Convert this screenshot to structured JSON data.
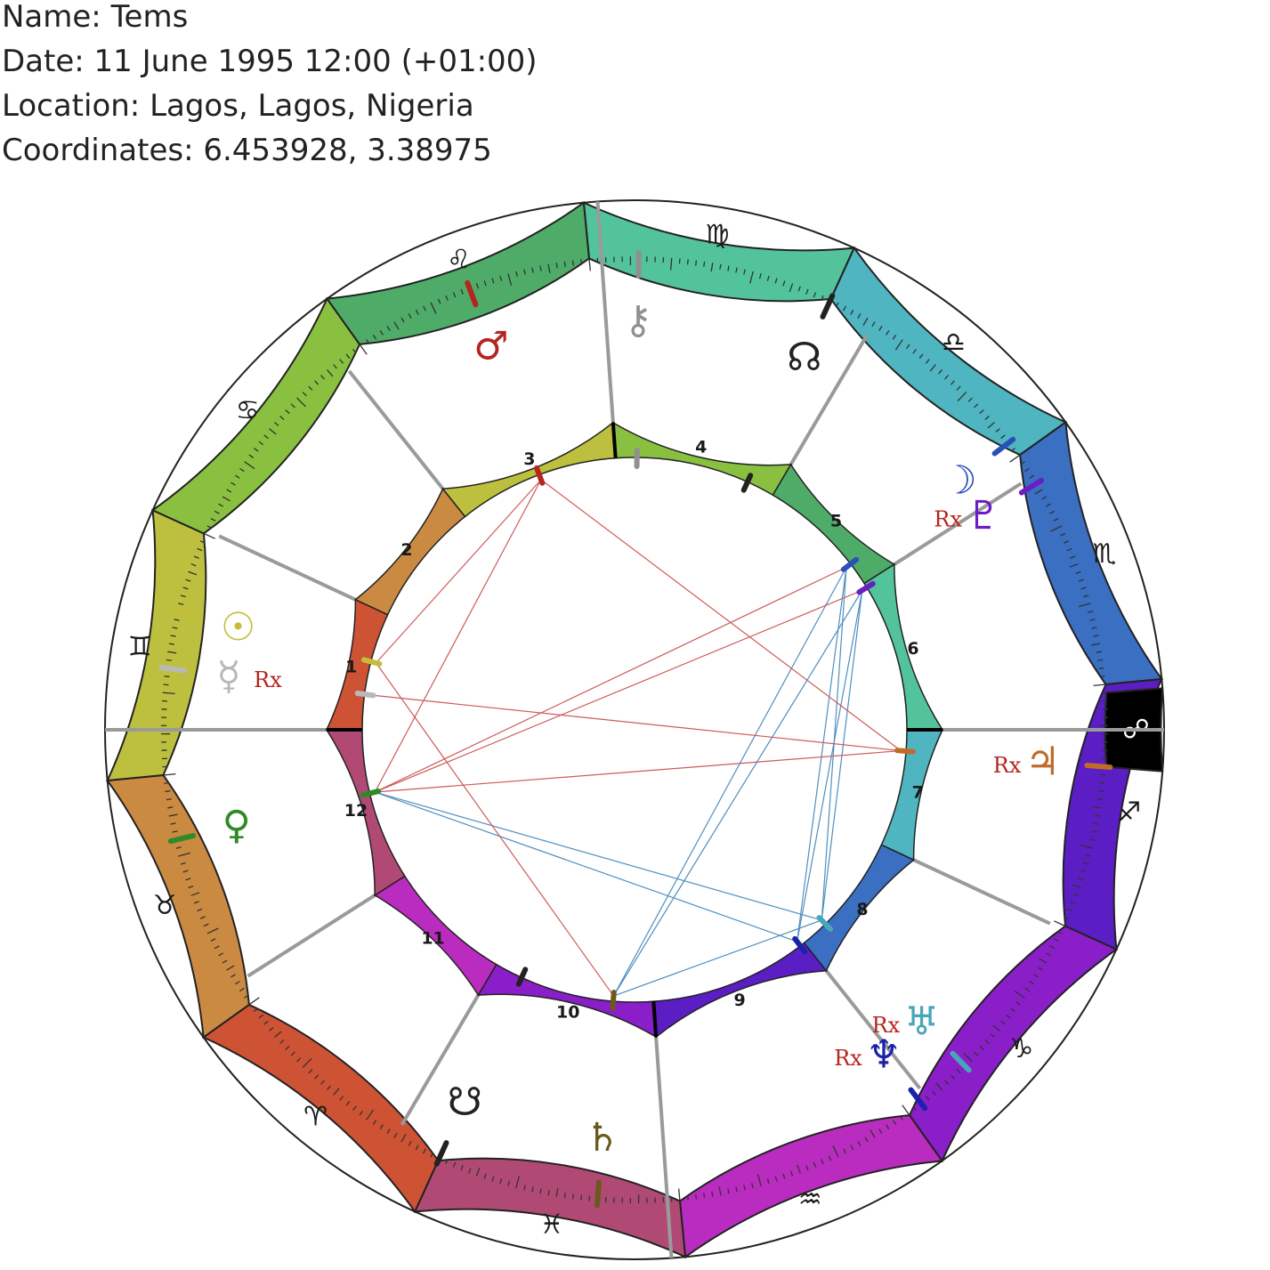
{
  "header": {
    "name": "Name: Tems",
    "date": "Date: 11 June 1995 12:00 (+01:00)",
    "location": "Location: Lagos, Lagos, Nigeria",
    "coordinates": "Coordinates: 6.453928, 3.38975"
  },
  "ascendant_deg": 65.5,
  "signs": [
    {
      "id": "aries",
      "glyph": "♈",
      "color": "#cd5334"
    },
    {
      "id": "taurus",
      "glyph": "♉",
      "color": "#cb8a42"
    },
    {
      "id": "gemini",
      "glyph": "♊",
      "color": "#bdc03e"
    },
    {
      "id": "cancer",
      "glyph": "♋",
      "color": "#8ac040"
    },
    {
      "id": "leo",
      "glyph": "♌",
      "color": "#4fab68"
    },
    {
      "id": "virgo",
      "glyph": "♍",
      "color": "#53c39b"
    },
    {
      "id": "libra",
      "glyph": "♎",
      "color": "#4fb5c0"
    },
    {
      "id": "scorpio",
      "glyph": "♏",
      "color": "#3a6fc2"
    },
    {
      "id": "sagittarius",
      "glyph": "♐",
      "color": "#5a1ec4"
    },
    {
      "id": "capricorn",
      "glyph": "♑",
      "color": "#8a1ec8"
    },
    {
      "id": "aquarius",
      "glyph": "♒",
      "color": "#ba2cbf"
    },
    {
      "id": "pisces",
      "glyph": "♓",
      "color": "#b04a74"
    }
  ],
  "houses": [
    {
      "label": "1",
      "cusp": 65.5,
      "color": "#cd5334"
    },
    {
      "label": "2",
      "cusp": 90.5,
      "color": "#cb8a42"
    },
    {
      "label": "3",
      "cusp": 117,
      "color": "#bdc03e"
    },
    {
      "label": "4",
      "cusp": 151.5,
      "color": "#8ac040"
    },
    {
      "label": "5",
      "cusp": 186,
      "color": "#4fab68"
    },
    {
      "label": "6",
      "cusp": 213,
      "color": "#53c39b"
    },
    {
      "label": "7",
      "cusp": 245.5,
      "color": "#4fb5c0"
    },
    {
      "label": "8",
      "cusp": 270.5,
      "color": "#3a6fc2"
    },
    {
      "label": "9",
      "cusp": 297,
      "color": "#5a1ec4"
    },
    {
      "label": "10",
      "cusp": 331.5,
      "color": "#8a1ec8"
    },
    {
      "label": "11",
      "cusp": 6,
      "color": "#ba2cbf"
    },
    {
      "label": "12",
      "cusp": 33,
      "color": "#b04a74"
    }
  ],
  "points": [
    {
      "id": "sun",
      "glyph": "☉",
      "lon": 80,
      "color": "#c4bd3a",
      "retro": false
    },
    {
      "id": "moon",
      "glyph": "☽",
      "lon": 208,
      "color": "#2b4fb8",
      "retro": false
    },
    {
      "id": "mercury",
      "glyph": "☿",
      "lon": 73,
      "color": "#b8b8b8",
      "retro": true
    },
    {
      "id": "venus",
      "glyph": "♀",
      "lon": 52,
      "color": "#2f8a2a",
      "retro": false
    },
    {
      "id": "mars",
      "glyph": "♂",
      "lon": 135,
      "color": "#b5251f",
      "retro": false
    },
    {
      "id": "jupiter",
      "glyph": "♃",
      "lon": 250,
      "color": "#c06b2a",
      "retro": true
    },
    {
      "id": "saturn",
      "glyph": "♄",
      "lon": 340,
      "color": "#6b5a1e",
      "retro": false
    },
    {
      "id": "uranus",
      "glyph": "♅",
      "lon": 291,
      "color": "#48a6b8",
      "retro": true
    },
    {
      "id": "neptune",
      "glyph": "♆",
      "lon": 298,
      "color": "#1a23a8",
      "retro": true
    },
    {
      "id": "pluto",
      "glyph": "♇",
      "lon": 214,
      "color": "#6a1ec4",
      "retro": true
    },
    {
      "id": "north-node",
      "glyph": "☊",
      "lon": 180,
      "color": "#222222",
      "retro": false
    },
    {
      "id": "south-node",
      "glyph": "☋",
      "lon": 0,
      "color": "#222222",
      "retro": false
    },
    {
      "id": "chiron",
      "glyph": "⚷",
      "lon": 156,
      "color": "#909090",
      "retro": false
    }
  ],
  "retro_label": "Rx",
  "descendant_glyph": "☍",
  "aspects": [
    {
      "a": "venus",
      "b": "uranus",
      "color": "#4f8fbf"
    },
    {
      "a": "venus",
      "b": "neptune",
      "color": "#4f8fbf"
    },
    {
      "a": "saturn",
      "b": "uranus",
      "color": "#4f8fbf"
    },
    {
      "a": "saturn",
      "b": "pluto",
      "color": "#4f8fbf"
    },
    {
      "a": "saturn",
      "b": "moon",
      "color": "#4f8fbf"
    },
    {
      "a": "uranus",
      "b": "pluto",
      "color": "#4f8fbf"
    },
    {
      "a": "uranus",
      "b": "moon",
      "color": "#4f8fbf"
    },
    {
      "a": "neptune",
      "b": "pluto",
      "color": "#4f8fbf"
    },
    {
      "a": "neptune",
      "b": "moon",
      "color": "#4f8fbf"
    },
    {
      "a": "saturn",
      "b": "sun",
      "color": "#cf5a5a"
    },
    {
      "a": "venus",
      "b": "mars",
      "color": "#cf5a5a"
    },
    {
      "a": "venus",
      "b": "jupiter",
      "color": "#cf5a5a"
    },
    {
      "a": "venus",
      "b": "pluto",
      "color": "#cf5a5a"
    },
    {
      "a": "venus",
      "b": "moon",
      "color": "#cf5a5a"
    },
    {
      "a": "mercury",
      "b": "jupiter",
      "color": "#cf5a5a"
    },
    {
      "a": "mars",
      "b": "jupiter",
      "color": "#cf5a5a"
    },
    {
      "a": "mars",
      "b": "sun",
      "color": "#cf5a5a"
    }
  ]
}
